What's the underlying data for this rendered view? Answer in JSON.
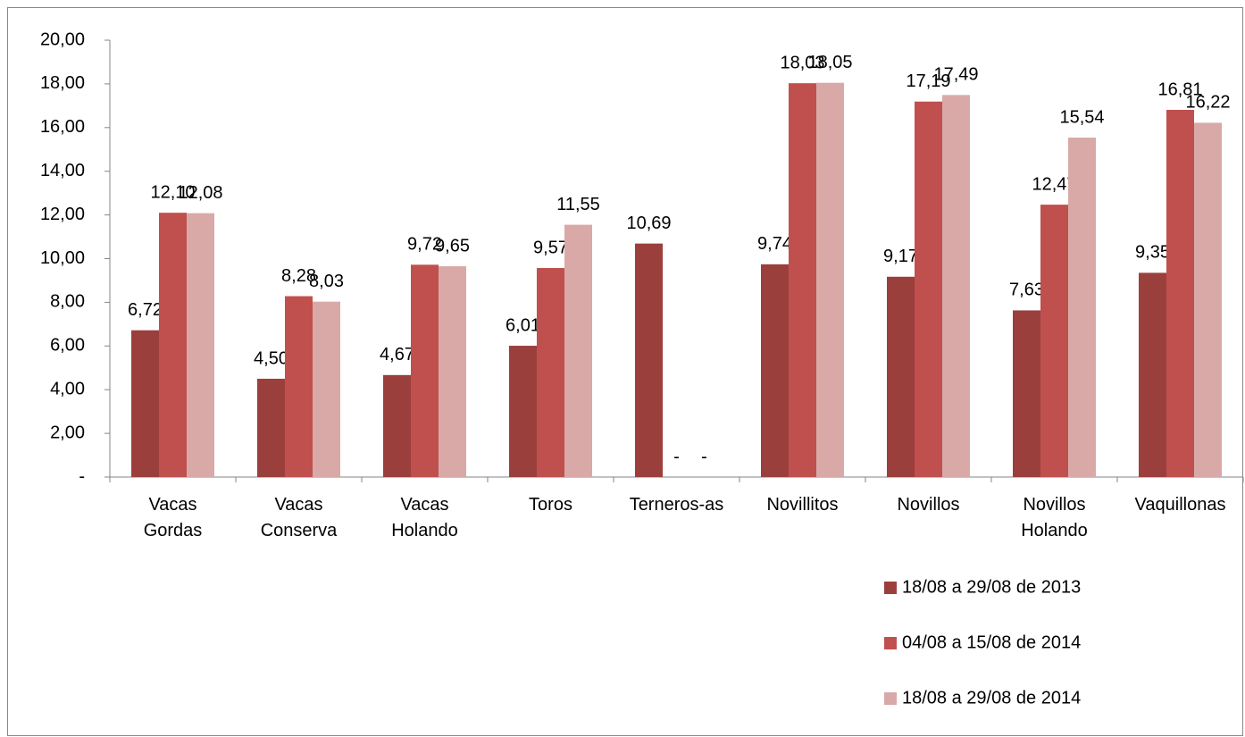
{
  "chart_data": {
    "type": "bar",
    "categories": [
      "Vacas\nGordas",
      "Vacas\nConserva",
      "Vacas\nHolando",
      "Toros",
      "Terneros-as",
      "Novillitos",
      "Novillos",
      "Novillos\nHolando",
      "Vaquillonas"
    ],
    "series": [
      {
        "name": "18/08 a 29/08 de 2013",
        "color": "#9b3f3d",
        "values": [
          6.72,
          4.5,
          4.67,
          6.01,
          10.69,
          9.74,
          9.17,
          7.63,
          9.35
        ],
        "value_labels": [
          "6,72",
          "4,50",
          "4,67",
          "6,01",
          "10,69",
          "9,74",
          "9,17",
          "7,63",
          "9,35"
        ]
      },
      {
        "name": "04/08 a 15/08 de 2014",
        "color": "#c0504d",
        "values": [
          12.1,
          8.28,
          9.72,
          9.57,
          0,
          18.03,
          17.19,
          12.47,
          16.81
        ],
        "value_labels": [
          "12,10",
          "8,28",
          "9,72",
          "9,57",
          "-",
          "18,03",
          "17,19",
          "12,47",
          "16,81"
        ]
      },
      {
        "name": "18/08 a 29/08 de 2014",
        "color": "#d9a9a8",
        "values": [
          12.08,
          8.03,
          9.65,
          11.55,
          0,
          18.05,
          17.49,
          15.54,
          16.22
        ],
        "value_labels": [
          "12,08",
          "8,03",
          "9,65",
          "11,55",
          "-",
          "18,05",
          "17,49",
          "15,54",
          "16,22"
        ]
      }
    ],
    "ylim": [
      0,
      20
    ],
    "yticks": [
      {
        "value": 0,
        "label": "-"
      },
      {
        "value": 2,
        "label": "2,00"
      },
      {
        "value": 4,
        "label": "4,00"
      },
      {
        "value": 6,
        "label": "6,00"
      },
      {
        "value": 8,
        "label": "8,00"
      },
      {
        "value": 10,
        "label": "10,00"
      },
      {
        "value": 12,
        "label": "12,00"
      },
      {
        "value": 14,
        "label": "14,00"
      },
      {
        "value": 16,
        "label": "16,00"
      },
      {
        "value": 18,
        "label": "18,00"
      },
      {
        "value": 20,
        "label": "20,00"
      }
    ],
    "grid": false,
    "legend": "bottom-right"
  }
}
